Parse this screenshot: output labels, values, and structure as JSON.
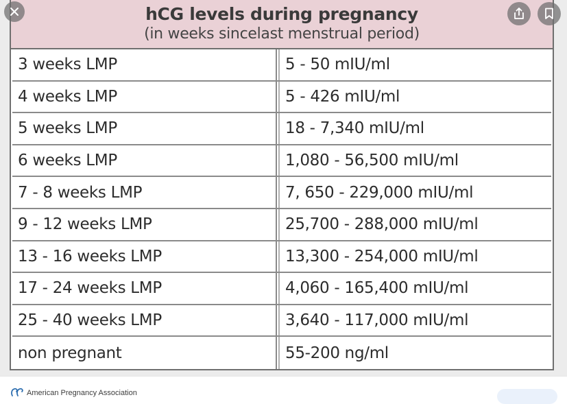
{
  "table": {
    "title": "hCG levels during pregnancy",
    "subtitle": "(in weeks sincelast menstrual period)",
    "rows": [
      {
        "period": "3 weeks LMP",
        "level": "5 - 50 mIU/ml"
      },
      {
        "period": "4 weeks LMP",
        "level": "5 - 426 mIU/ml"
      },
      {
        "period": "5 weeks LMP",
        "level": "18 - 7,340 mIU/ml"
      },
      {
        "period": "6 weeks LMP",
        "level": "1,080 - 56,500 mIU/ml"
      },
      {
        "period": "7 - 8 weeks LMP",
        "level": "7, 650 - 229,000 mIU/ml"
      },
      {
        "period": "9 - 12 weeks LMP",
        "level": "25,700 - 288,000 mIU/ml"
      },
      {
        "period": "13 - 16 weeks LMP",
        "level": "13,300 - 254,000 mIU/ml"
      },
      {
        "period": "17 - 24 weeks LMP",
        "level": "4,060 - 165,400 mIU/ml"
      },
      {
        "period": "25 - 40 weeks LMP",
        "level": "3,640 - 117,000 mIU/ml"
      },
      {
        "period": "non pregnant",
        "level": "55-200 ng/ml"
      }
    ]
  },
  "viewer": {
    "close_icon": "close-icon",
    "share_icon": "share-icon",
    "bookmark_icon": "bookmark-icon"
  },
  "footer": {
    "source_name": "American Pregnancy Association",
    "source_icon": "source-logo-icon"
  },
  "colors": {
    "header_bg": "#ead1d6",
    "page_bg": "#ececec"
  }
}
